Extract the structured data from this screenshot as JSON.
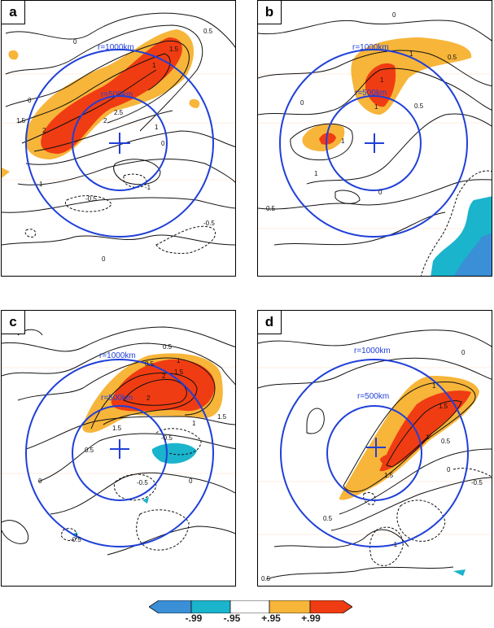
{
  "chart_data": {
    "type": "heatmap",
    "description_units": "composite contours with significance shading",
    "colorbar": {
      "labels": [
        "-.99",
        "-.95",
        "+.95",
        "+.99"
      ],
      "colors": [
        "#3a8fd6",
        "#1ab4cc",
        "#ffffff",
        "#f7b53a",
        "#f03c12"
      ]
    },
    "panels": [
      {
        "letter": "a",
        "circle_labels": [
          "r=1000km",
          "r=500km"
        ],
        "contour_labels": [
          "0.5",
          "1.5",
          "1",
          "2",
          "2.5",
          "2",
          "1.5",
          "1",
          "0",
          "0",
          "-0.5",
          "-0.5",
          "0",
          "1",
          "0",
          "-1"
        ]
      },
      {
        "letter": "b",
        "circle_labels": [
          "r=1000km",
          "r=500km"
        ],
        "contour_labels": [
          "1",
          "1",
          "1",
          "0.5",
          "1",
          "0.5",
          "0",
          "1",
          "0.5",
          "0",
          "0"
        ]
      },
      {
        "letter": "c",
        "circle_labels": [
          "r=1000km",
          "r=500km"
        ],
        "contour_labels": [
          "0.5",
          "1",
          "1.5",
          "2",
          "2",
          "1.5",
          "1",
          "0.5",
          "-0.5",
          "-0.5",
          "0",
          "0",
          "-0.5",
          "1.5",
          "0.5"
        ]
      },
      {
        "letter": "d",
        "circle_labels": [
          "r=1000km",
          "r=500km"
        ],
        "contour_labels": [
          "1",
          "1.5",
          "1",
          "0.5",
          "1.5",
          "0",
          "-0.5",
          "0.5",
          "-1",
          "0.5",
          "0"
        ]
      }
    ]
  }
}
